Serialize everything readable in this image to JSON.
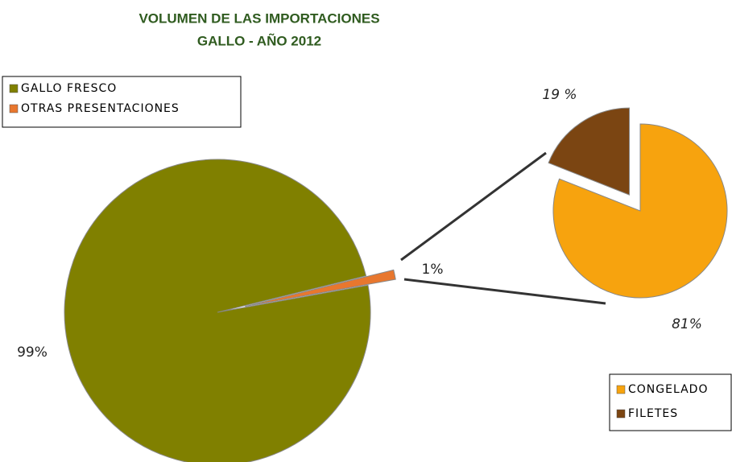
{
  "chart_data": [
    {
      "type": "pie",
      "title": "VOLUMEN DE LAS IMPORTACIONES",
      "subtitle": "GALLO - AÑO 2012",
      "categories": [
        "GALLO FRESCO",
        "OTRAS PRESENTACIONES"
      ],
      "values": [
        99,
        1
      ],
      "value_labels": [
        "99%",
        "1%"
      ],
      "colors": [
        "#808000",
        "#e8772e"
      ]
    },
    {
      "type": "pie",
      "categories": [
        "CONGELADO",
        "FILETES"
      ],
      "values": [
        81,
        19
      ],
      "value_labels": [
        "81%",
        "19 %"
      ],
      "colors": [
        "#f7a30e",
        "#7b4512"
      ]
    }
  ]
}
